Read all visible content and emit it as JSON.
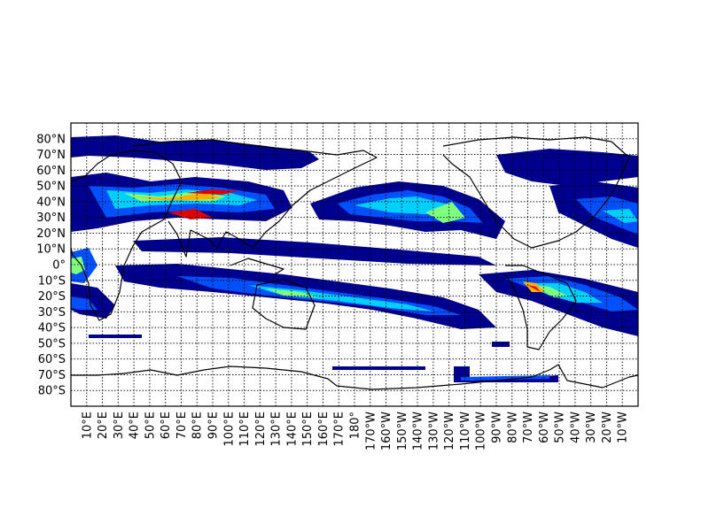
{
  "map": {
    "projection": "cylindrical",
    "grid": "on",
    "lon_range": [
      0,
      360
    ],
    "lat_range": [
      -90,
      90
    ],
    "colormap": "jet",
    "lon_labels": [
      "10°E",
      "20°E",
      "30°E",
      "40°E",
      "50°E",
      "60°E",
      "70°E",
      "80°E",
      "90°E",
      "100°E",
      "110°E",
      "120°E",
      "130°E",
      "140°E",
      "150°E",
      "160°E",
      "170°E",
      "180°",
      "170°W",
      "160°W",
      "150°W",
      "140°W",
      "130°W",
      "120°W",
      "110°W",
      "100°W",
      "90°W",
      "80°W",
      "70°W",
      "60°W",
      "50°W",
      "40°W",
      "30°W",
      "20°W",
      "10°W"
    ],
    "lat_labels": [
      "80°N",
      "70°N",
      "60°N",
      "50°N",
      "40°N",
      "30°N",
      "20°N",
      "10°N",
      "0°",
      "10°S",
      "20°S",
      "30°S",
      "40°S",
      "50°S",
      "60°S",
      "70°S",
      "80°S"
    ],
    "colors": {
      "level1": "#00008f",
      "level2": "#0050ff",
      "level3": "#00d0ff",
      "level4": "#7fff7f",
      "level5": "#ffb000",
      "level6": "#e00000"
    }
  }
}
